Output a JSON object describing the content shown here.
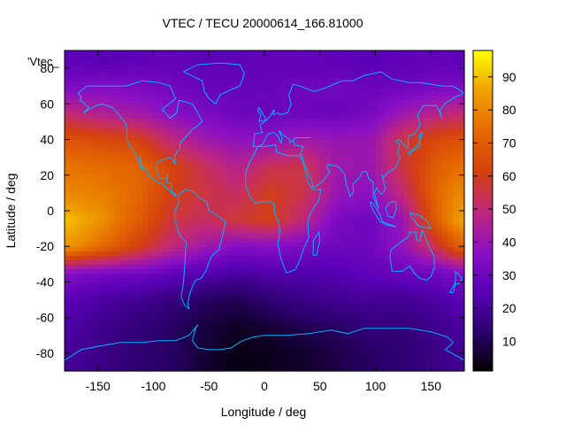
{
  "chart_data": {
    "type": "heatmap",
    "title": "VTEC / TECU 20000614_166.81000",
    "xlabel": "Longitude / deg",
    "ylabel": "Latitude / deg",
    "key_label": "'Vtec_",
    "xlim": [
      -180,
      180
    ],
    "ylim": [
      -90,
      90
    ],
    "x_ticks": [
      -150,
      -100,
      -50,
      0,
      50,
      100,
      150
    ],
    "y_ticks": [
      -80,
      -60,
      -40,
      -20,
      0,
      20,
      40,
      60,
      80
    ],
    "colorbar": {
      "range": [
        1,
        98
      ],
      "ticks": [
        10,
        20,
        30,
        40,
        50,
        60,
        70,
        80,
        90
      ]
    },
    "z_units": "TECU",
    "grid": "off",
    "coastlines": true,
    "z_grid": {
      "lon": [
        -175,
        -145,
        -115,
        -85,
        -55,
        -25,
        5,
        35,
        65,
        95,
        125,
        155,
        175
      ],
      "lat": [
        85,
        70,
        55,
        40,
        25,
        10,
        -5,
        -20,
        -35,
        -50,
        -65,
        -80
      ],
      "values": [
        [
          26,
          25,
          26,
          27,
          26,
          26,
          27,
          27,
          26,
          25,
          26,
          27,
          26
        ],
        [
          33,
          35,
          33,
          31,
          29,
          28,
          29,
          30,
          31,
          29,
          30,
          32,
          33
        ],
        [
          50,
          45,
          42,
          37,
          33,
          30,
          29,
          30,
          29,
          32,
          41,
          47,
          50
        ],
        [
          67,
          64,
          62,
          50,
          42,
          38,
          37,
          42,
          40,
          40,
          56,
          64,
          66
        ],
        [
          76,
          74,
          72,
          63,
          54,
          46,
          54,
          55,
          42,
          40,
          56,
          70,
          75
        ],
        [
          80,
          78,
          73,
          61,
          56,
          52,
          60,
          55,
          40,
          37,
          50,
          73,
          80
        ],
        [
          90,
          82,
          70,
          57,
          52,
          57,
          61,
          49,
          33,
          30,
          40,
          70,
          85
        ],
        [
          83,
          73,
          62,
          50,
          42,
          35,
          36,
          33,
          30,
          30,
          39,
          55,
          70
        ],
        [
          35,
          32,
          31,
          27,
          24,
          21,
          23,
          23,
          24,
          27,
          29,
          30,
          34
        ],
        [
          25,
          21,
          19,
          16,
          12,
          10,
          14,
          17,
          19,
          20,
          19,
          22,
          25
        ],
        [
          22,
          18,
          15,
          12,
          8,
          5,
          7,
          10,
          12,
          15,
          15,
          18,
          21
        ],
        [
          20,
          17,
          14,
          12,
          7,
          3,
          4,
          6,
          9,
          12,
          14,
          17,
          19
        ]
      ]
    }
  }
}
